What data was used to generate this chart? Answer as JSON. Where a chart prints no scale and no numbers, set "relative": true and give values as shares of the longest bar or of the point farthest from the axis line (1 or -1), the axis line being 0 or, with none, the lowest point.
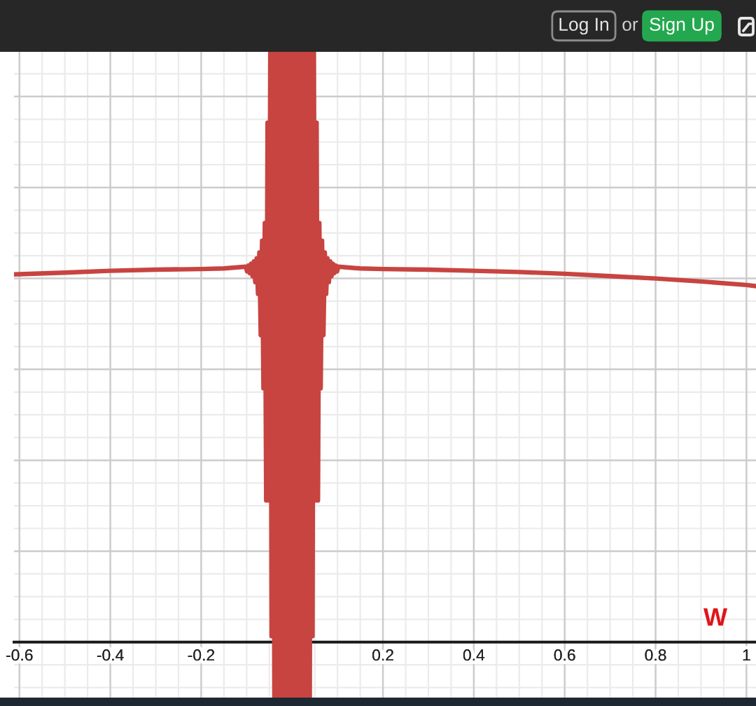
{
  "chart_data": {
    "type": "line",
    "relative": true,
    "color": "#c74440",
    "line_style": "solid",
    "grid": true,
    "xlim": [
      -0.612,
      1.021
    ],
    "xticks": [
      -0.6,
      -0.4,
      -0.2,
      0.2,
      0.4,
      0.6,
      0.8,
      1
    ],
    "x": [
      -0.612,
      -0.5,
      -0.4,
      -0.3,
      -0.2,
      -0.15,
      -0.102,
      -0.099,
      -0.096,
      -0.093,
      -0.09,
      -0.087,
      -0.084,
      -0.081,
      -0.078,
      -0.075,
      -0.072,
      -0.069,
      -0.066,
      -0.063,
      -0.06,
      -0.057,
      -0.054,
      -0.051,
      -0.048,
      -0.045,
      -0.042,
      -0.039,
      -0.036,
      -0.033,
      -0.03,
      -0.027,
      -0.024,
      -0.021,
      -0.018,
      -0.015,
      -0.012,
      -0.009,
      -0.006,
      -0.003,
      0,
      0.003,
      0.006,
      0.009,
      0.012,
      0.015,
      0.018,
      0.021,
      0.024,
      0.027,
      0.03,
      0.033,
      0.036,
      0.039,
      0.042,
      0.045,
      0.048,
      0.051,
      0.054,
      0.057,
      0.06,
      0.063,
      0.066,
      0.069,
      0.072,
      0.075,
      0.078,
      0.081,
      0.084,
      0.087,
      0.09,
      0.093,
      0.096,
      0.099,
      0.102,
      0.15,
      0.2,
      0.3,
      0.4,
      0.5,
      0.6,
      0.7,
      0.8,
      0.9,
      1,
      1.021
    ],
    "values": [
      0.623,
      0.626,
      0.629,
      0.631,
      0.632,
      0.633,
      0.636,
      0.628,
      0.638,
      0.625,
      0.641,
      0.62,
      0.645,
      0.61,
      0.65,
      0.59,
      0.66,
      0.52,
      0.68,
      0.43,
      0.71,
      0.24,
      0.88,
      0.24,
      1,
      0.01,
      1,
      -0.094,
      1,
      -0.094,
      1,
      -0.094,
      1,
      -0.094,
      1,
      -0.094,
      1,
      -0.094,
      1,
      -0.094,
      1,
      -0.094,
      1,
      -0.094,
      1,
      -0.094,
      1,
      -0.094,
      1,
      -0.094,
      1,
      -0.094,
      1,
      -0.094,
      1,
      0.01,
      1,
      0.24,
      0.88,
      0.24,
      0.71,
      0.43,
      0.68,
      0.52,
      0.66,
      0.59,
      0.65,
      0.61,
      0.645,
      0.62,
      0.641,
      0.625,
      0.638,
      0.628,
      0.636,
      0.633,
      0.632,
      0.631,
      0.629,
      0.627,
      0.624,
      0.62,
      0.616,
      0.611,
      0.605,
      0.603
    ],
    "annotations": [
      "Log In",
      "or",
      "Sign Up",
      "W"
    ]
  }
}
